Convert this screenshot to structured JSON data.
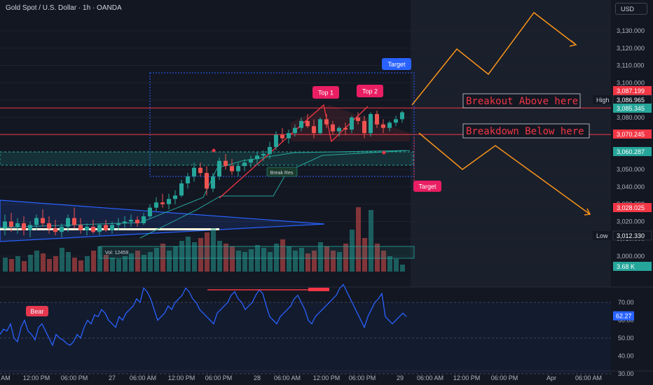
{
  "header": {
    "title": "Gold Spot / U.S. Dollar · 1h · OANDA",
    "currency": "USD"
  },
  "colors": {
    "bg": "#131722",
    "up": "#26a69a",
    "down": "#ef5350",
    "accent": "#2962ff",
    "orange": "#f7931a",
    "breakout": "#f23645",
    "rsi": "#2962ff"
  },
  "price_axis": {
    "ticks": [
      "3,130.000",
      "3,120.000",
      "3,110.000",
      "3,100.000",
      "3,090.000",
      "3,080.000",
      "3,070.000",
      "3,060.000",
      "3,050.000",
      "3,040.000",
      "3,030.000",
      "3,020.000",
      "3,010.000",
      "3,000.000"
    ],
    "price_labels": [
      {
        "text": "3,087.199",
        "color": "#f23645"
      },
      {
        "text": "3,086.965",
        "color": "#131722",
        "tag": "High"
      },
      {
        "text": "3,085.345",
        "color": "#26a69a"
      },
      {
        "text": "3,070.245",
        "color": "#f23645"
      },
      {
        "text": "3,060.287",
        "color": "#26a69a"
      },
      {
        "text": "3,028.025",
        "color": "#f23645"
      },
      {
        "text": "3,012.330",
        "color": "#131722",
        "tag": "Low"
      },
      {
        "text": "3.68 K",
        "color": "#26a69a"
      }
    ]
  },
  "time_axis": {
    "ticks": [
      "AM",
      "12:00 PM",
      "06:00 PM",
      "27",
      "06:00 AM",
      "12:00 PM",
      "06:00 PM",
      "28",
      "06:00 AM",
      "12:00 PM",
      "06:00 PM",
      "29",
      "06:00 AM",
      "12:00 PM",
      "06:00 PM",
      "Apr",
      "06:00 AM"
    ]
  },
  "annotations": {
    "top1": "Top 1",
    "top2": "Top 2",
    "target_up": "Target",
    "target_down": "Target",
    "breakout_above": "Breakout Above here",
    "breakdown_below": "Breakdown Below here",
    "break_res": "Break Res",
    "vol_label": "Vol: 12459",
    "bear": "Bear"
  },
  "rsi": {
    "ticks": [
      "70.00",
      "60.00",
      "50.00",
      "40.00",
      "30.00"
    ],
    "current": "62.27"
  },
  "chart_data": {
    "type": "candlestick",
    "title": "Gold Spot / U.S. Dollar · 1h · OANDA",
    "y_range": [
      2995,
      3137
    ],
    "ohlc_approx": [
      [
        3016,
        3024,
        3012,
        3020
      ],
      [
        3020,
        3025,
        3014,
        3017
      ],
      [
        3017,
        3022,
        3013,
        3019
      ],
      [
        3019,
        3023,
        3012,
        3015
      ],
      [
        3015,
        3020,
        3011,
        3018
      ],
      [
        3018,
        3024,
        3015,
        3022
      ],
      [
        3022,
        3027,
        3017,
        3019
      ],
      [
        3019,
        3023,
        3013,
        3016
      ],
      [
        3016,
        3021,
        3012,
        3014
      ],
      [
        3014,
        3019,
        3011,
        3017
      ],
      [
        3017,
        3024,
        3014,
        3022
      ],
      [
        3022,
        3028,
        3016,
        3018
      ],
      [
        3018,
        3022,
        3013,
        3015
      ],
      [
        3015,
        3019,
        3012,
        3017
      ],
      [
        3017,
        3021,
        3013,
        3014
      ],
      [
        3014,
        3019,
        3012,
        3018
      ],
      [
        3018,
        3021,
        3014,
        3015
      ],
      [
        3015,
        3020,
        3013,
        3018
      ],
      [
        3018,
        3022,
        3015,
        3019
      ],
      [
        3019,
        3023,
        3016,
        3020
      ],
      [
        3020,
        3024,
        3017,
        3021
      ],
      [
        3021,
        3023,
        3017,
        3019
      ],
      [
        3019,
        3025,
        3018,
        3023
      ],
      [
        3023,
        3030,
        3022,
        3028
      ],
      [
        3028,
        3034,
        3026,
        3031
      ],
      [
        3031,
        3036,
        3028,
        3030
      ],
      [
        3030,
        3036,
        3027,
        3033
      ],
      [
        3033,
        3038,
        3030,
        3035
      ],
      [
        3035,
        3044,
        3034,
        3042
      ],
      [
        3042,
        3048,
        3039,
        3046
      ],
      [
        3046,
        3054,
        3043,
        3051
      ],
      [
        3051,
        3054,
        3046,
        3048
      ],
      [
        3048,
        3052,
        3035,
        3039
      ],
      [
        3039,
        3048,
        3037,
        3046
      ],
      [
        3046,
        3057,
        3044,
        3055
      ],
      [
        3055,
        3059,
        3050,
        3052
      ],
      [
        3052,
        3056,
        3047,
        3049
      ],
      [
        3049,
        3054,
        3046,
        3052
      ],
      [
        3052,
        3056,
        3049,
        3054
      ],
      [
        3054,
        3058,
        3051,
        3056
      ],
      [
        3056,
        3060,
        3053,
        3058
      ],
      [
        3058,
        3061,
        3055,
        3059
      ],
      [
        3059,
        3066,
        3056,
        3063
      ],
      [
        3063,
        3072,
        3061,
        3070
      ],
      [
        3070,
        3074,
        3066,
        3068
      ],
      [
        3068,
        3073,
        3065,
        3071
      ],
      [
        3071,
        3076,
        3069,
        3074
      ],
      [
        3074,
        3080,
        3072,
        3078
      ],
      [
        3078,
        3082,
        3074,
        3075
      ],
      [
        3075,
        3079,
        3068,
        3071
      ],
      [
        3071,
        3080,
        3070,
        3079
      ],
      [
        3079,
        3082,
        3074,
        3076
      ],
      [
        3076,
        3078,
        3070,
        3072
      ],
      [
        3072,
        3075,
        3069,
        3074
      ],
      [
        3074,
        3077,
        3070,
        3073
      ],
      [
        3073,
        3081,
        3071,
        3080
      ],
      [
        3080,
        3083,
        3076,
        3078
      ],
      [
        3078,
        3081,
        3068,
        3071
      ],
      [
        3071,
        3083,
        3069,
        3082
      ],
      [
        3082,
        3084,
        3074,
        3076
      ],
      [
        3076,
        3079,
        3071,
        3074
      ],
      [
        3074,
        3078,
        3072,
        3077
      ],
      [
        3077,
        3081,
        3075,
        3079
      ],
      [
        3079,
        3084,
        3077,
        3083
      ]
    ],
    "volume_pattern": "moderate-with-spikes-near-end",
    "rsi_current": 62.27,
    "levels": {
      "breakout": 3085.5,
      "breakdown": 3070.2,
      "support_zone": [
        3053,
        3061
      ]
    },
    "projections": [
      "Breakout Above here",
      "Breakdown Below here"
    ]
  }
}
